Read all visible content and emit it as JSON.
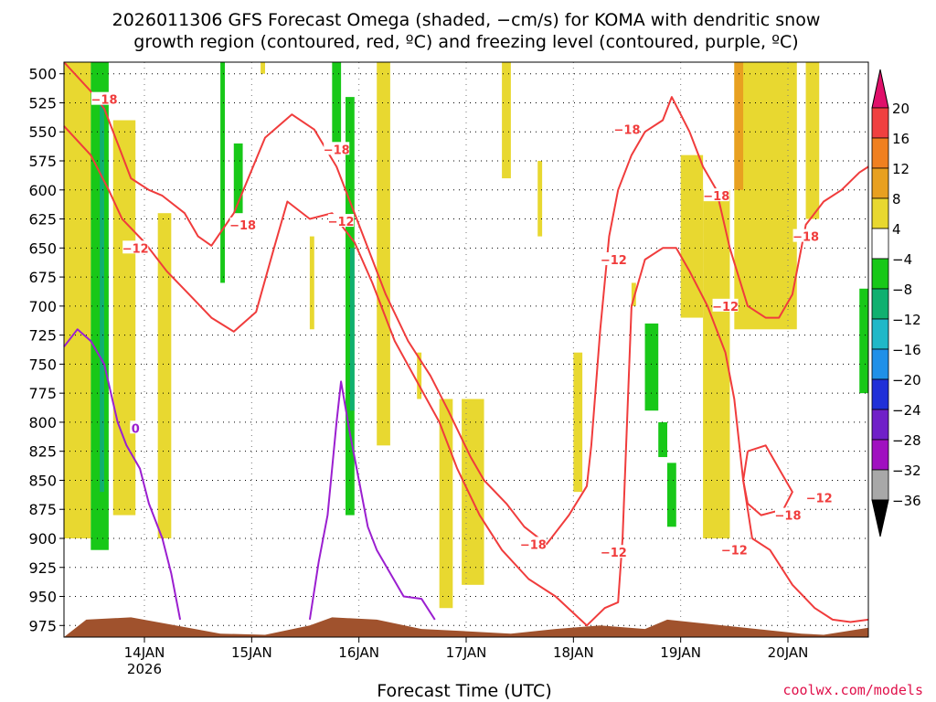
{
  "chart_data": {
    "type": "heatmap",
    "title": {
      "line1": "2026011306 GFS Forecast Omega (shaded, −cm/s) for KOMA with dendritic snow",
      "line2": "growth region (contoured, red, ºC) and freezing level (contoured, purple, ºC)"
    },
    "xlabel": "Forecast Time (UTC)",
    "credit": "coolwx.com/models",
    "x_ticks": [
      {
        "label": "14JAN",
        "sub": "2026",
        "hours": 18
      },
      {
        "label": "15JAN",
        "sub": "",
        "hours": 42
      },
      {
        "label": "16JAN",
        "sub": "",
        "hours": 66
      },
      {
        "label": "17JAN",
        "sub": "",
        "hours": 90
      },
      {
        "label": "18JAN",
        "sub": "",
        "hours": 114
      },
      {
        "label": "19JAN",
        "sub": "",
        "hours": 138
      },
      {
        "label": "20JAN",
        "sub": "",
        "hours": 162
      }
    ],
    "x_range_hours": [
      0,
      180
    ],
    "y_axis": {
      "scale": "pressure (hPa), reversed",
      "ticks": [
        500,
        525,
        550,
        575,
        600,
        625,
        650,
        675,
        700,
        725,
        750,
        775,
        800,
        825,
        850,
        875,
        900,
        925,
        950,
        975
      ],
      "range": [
        490,
        985
      ]
    },
    "grid": "dotted",
    "colorbar": {
      "levels": [
        "20",
        "16",
        "12",
        "8",
        "4",
        "−4",
        "−8",
        "−12",
        "−16",
        "−20",
        "−24",
        "−28",
        "−32",
        "−36"
      ],
      "colors": [
        "#e0106a",
        "#f04040",
        "#f08020",
        "#e8a020",
        "#e8d830",
        "#ffffff",
        "#18c818",
        "#10b070",
        "#20b8c8",
        "#2090e8",
        "#2030d8",
        "#7020c8",
        "#a010c0",
        "#a8a8a8",
        "#000000"
      ]
    },
    "terrain_color": "#a0522d",
    "shading": [
      {
        "color": "#e8d830",
        "x0": 0,
        "x1": 6,
        "p0": 490,
        "p1": 900
      },
      {
        "color": "#18c818",
        "x0": 6,
        "x1": 10,
        "p0": 490,
        "p1": 910
      },
      {
        "color": "#10b070",
        "x0": 8,
        "x1": 9,
        "p0": 520,
        "p1": 860
      },
      {
        "color": "#e8d830",
        "x0": 11,
        "x1": 16,
        "p0": 540,
        "p1": 880
      },
      {
        "color": "#e8d830",
        "x0": 21,
        "x1": 24,
        "p0": 620,
        "p1": 900
      },
      {
        "color": "#18c818",
        "x0": 35,
        "x1": 36,
        "p0": 490,
        "p1": 680
      },
      {
        "color": "#18c818",
        "x0": 38,
        "x1": 40,
        "p0": 560,
        "p1": 620
      },
      {
        "color": "#e8d830",
        "x0": 44,
        "x1": 45,
        "p0": 490,
        "p1": 500
      },
      {
        "color": "#e8d830",
        "x0": 55,
        "x1": 56,
        "p0": 640,
        "p1": 720
      },
      {
        "color": "#18c818",
        "x0": 60,
        "x1": 62,
        "p0": 490,
        "p1": 560
      },
      {
        "color": "#18c818",
        "x0": 63,
        "x1": 65,
        "p0": 520,
        "p1": 880
      },
      {
        "color": "#10b070",
        "x0": 64,
        "x1": 65,
        "p0": 650,
        "p1": 790
      },
      {
        "color": "#e8d830",
        "x0": 70,
        "x1": 73,
        "p0": 490,
        "p1": 820
      },
      {
        "color": "#e8d830",
        "x0": 79,
        "x1": 80,
        "p0": 740,
        "p1": 780
      },
      {
        "color": "#e8d830",
        "x0": 84,
        "x1": 87,
        "p0": 780,
        "p1": 960
      },
      {
        "color": "#e8d830",
        "x0": 89,
        "x1": 94,
        "p0": 780,
        "p1": 940
      },
      {
        "color": "#e8d830",
        "x0": 98,
        "x1": 100,
        "p0": 490,
        "p1": 590
      },
      {
        "color": "#e8d830",
        "x0": 106,
        "x1": 107,
        "p0": 575,
        "p1": 640
      },
      {
        "color": "#e8d830",
        "x0": 114,
        "x1": 116,
        "p0": 740,
        "p1": 860
      },
      {
        "color": "#e8d830",
        "x0": 127,
        "x1": 128,
        "p0": 680,
        "p1": 700
      },
      {
        "color": "#18c818",
        "x0": 130,
        "x1": 133,
        "p0": 715,
        "p1": 790
      },
      {
        "color": "#18c818",
        "x0": 133,
        "x1": 135,
        "p0": 800,
        "p1": 830
      },
      {
        "color": "#18c818",
        "x0": 135,
        "x1": 137,
        "p0": 835,
        "p1": 890
      },
      {
        "color": "#e8d830",
        "x0": 138,
        "x1": 143,
        "p0": 570,
        "p1": 710
      },
      {
        "color": "#e8d830",
        "x0": 143,
        "x1": 149,
        "p0": 600,
        "p1": 900
      },
      {
        "color": "#e8d830",
        "x0": 150,
        "x1": 164,
        "p0": 490,
        "p1": 720
      },
      {
        "color": "#e8a020",
        "x0": 150,
        "x1": 152,
        "p0": 490,
        "p1": 600
      },
      {
        "color": "#e8d830",
        "x0": 166,
        "x1": 169,
        "p0": 490,
        "p1": 625
      },
      {
        "color": "#18c818",
        "x0": 178,
        "x1": 180,
        "p0": 685,
        "p1": 775
      }
    ],
    "series": [
      {
        "label": "−18",
        "kind": "dgz",
        "points": [
          [
            0,
            490
          ],
          [
            6,
            515
          ],
          [
            9,
            530
          ],
          [
            12,
            560
          ],
          [
            15,
            590
          ],
          [
            19,
            600
          ],
          [
            22,
            605
          ],
          [
            27,
            620
          ],
          [
            30,
            640
          ],
          [
            33,
            648
          ],
          [
            38,
            620
          ],
          [
            45,
            555
          ],
          [
            51,
            535
          ],
          [
            56,
            548
          ],
          [
            61,
            580
          ],
          [
            67,
            640
          ],
          [
            72,
            690
          ],
          [
            77,
            730
          ],
          [
            82,
            760
          ],
          [
            86,
            790
          ],
          [
            91,
            830
          ],
          [
            94,
            850
          ],
          [
            99,
            870
          ],
          [
            103,
            890
          ],
          [
            108,
            905
          ],
          [
            113,
            880
          ],
          [
            117,
            855
          ],
          [
            118,
            820
          ],
          [
            120,
            720
          ],
          [
            122,
            640
          ],
          [
            124,
            600
          ],
          [
            127,
            570
          ],
          [
            130,
            550
          ],
          [
            134,
            540
          ],
          [
            136,
            520
          ],
          [
            138,
            535
          ],
          [
            140,
            550
          ],
          [
            143,
            580
          ],
          [
            146,
            600
          ],
          [
            149,
            650
          ],
          [
            153,
            700
          ],
          [
            157,
            710
          ],
          [
            160,
            710
          ],
          [
            163,
            690
          ],
          [
            166,
            630
          ],
          [
            170,
            610
          ],
          [
            174,
            600
          ],
          [
            178,
            585
          ],
          [
            180,
            580
          ]
        ]
      },
      {
        "label": "−12",
        "kind": "dgz",
        "points": [
          [
            0,
            545
          ],
          [
            6,
            570
          ],
          [
            10,
            600
          ],
          [
            13,
            625
          ],
          [
            18,
            645
          ],
          [
            23,
            670
          ],
          [
            28,
            690
          ],
          [
            33,
            710
          ],
          [
            38,
            722
          ],
          [
            43,
            705
          ],
          [
            47,
            650
          ],
          [
            50,
            610
          ],
          [
            55,
            625
          ],
          [
            60,
            620
          ],
          [
            65,
            645
          ],
          [
            69,
            680
          ],
          [
            74,
            730
          ],
          [
            79,
            765
          ],
          [
            84,
            800
          ],
          [
            88,
            840
          ],
          [
            93,
            880
          ],
          [
            98,
            910
          ],
          [
            104,
            935
          ],
          [
            110,
            950
          ],
          [
            117,
            975
          ],
          [
            121,
            960
          ],
          [
            124,
            955
          ],
          [
            125,
            900
          ],
          [
            126,
            800
          ],
          [
            127,
            700
          ],
          [
            130,
            660
          ],
          [
            134,
            650
          ],
          [
            137,
            650
          ],
          [
            140,
            670
          ],
          [
            144,
            700
          ],
          [
            148,
            740
          ],
          [
            150,
            780
          ],
          [
            152,
            850
          ],
          [
            154,
            900
          ],
          [
            158,
            910
          ],
          [
            163,
            940
          ],
          [
            168,
            960
          ],
          [
            172,
            970
          ],
          [
            176,
            972
          ],
          [
            180,
            970
          ]
        ]
      },
      {
        "label": "−18",
        "kind": "dgz",
        "points": [
          [
            153,
            825
          ],
          [
            157,
            820
          ],
          [
            160,
            840
          ],
          [
            163,
            860
          ],
          [
            161,
            875
          ],
          [
            156,
            880
          ],
          [
            153,
            870
          ],
          [
            152,
            850
          ],
          [
            153,
            825
          ]
        ]
      },
      {
        "label": "0",
        "kind": "freezing",
        "points": [
          [
            0,
            735
          ],
          [
            3,
            720
          ],
          [
            6,
            730
          ],
          [
            9,
            750
          ],
          [
            12,
            800
          ],
          [
            14,
            820
          ],
          [
            17,
            840
          ],
          [
            19,
            870
          ],
          [
            22,
            900
          ],
          [
            24,
            930
          ],
          [
            26,
            970
          ]
        ]
      },
      {
        "label": "0",
        "kind": "freezing",
        "points": [
          [
            55,
            970
          ],
          [
            57,
            920
          ],
          [
            59,
            880
          ],
          [
            61,
            800
          ],
          [
            62,
            765
          ],
          [
            64,
            810
          ],
          [
            66,
            850
          ],
          [
            68,
            890
          ],
          [
            70,
            910
          ],
          [
            73,
            930
          ],
          [
            76,
            950
          ],
          [
            80,
            952
          ],
          [
            83,
            970
          ]
        ]
      }
    ],
    "contour_labels": [
      {
        "text": "−18",
        "x": 9,
        "p": 522
      },
      {
        "text": "−12",
        "x": 16,
        "p": 650
      },
      {
        "text": "−18",
        "x": 40,
        "p": 630
      },
      {
        "text": "−18",
        "x": 61,
        "p": 565
      },
      {
        "text": "−12",
        "x": 62,
        "p": 627
      },
      {
        "text": "−18",
        "x": 105,
        "p": 905
      },
      {
        "text": "−12",
        "x": 123,
        "p": 660
      },
      {
        "text": "−12",
        "x": 123,
        "p": 912
      },
      {
        "text": "−18",
        "x": 126,
        "p": 548
      },
      {
        "text": "−18",
        "x": 146,
        "p": 605
      },
      {
        "text": "−12",
        "x": 148,
        "p": 700
      },
      {
        "text": "−12",
        "x": 150,
        "p": 910
      },
      {
        "text": "−18",
        "x": 162,
        "p": 880
      },
      {
        "text": "−18",
        "x": 166,
        "p": 640
      },
      {
        "text": "−12",
        "x": 169,
        "p": 865
      },
      {
        "text": "0",
        "x": 16,
        "p": 805
      }
    ],
    "terrain": [
      [
        0,
        985
      ],
      [
        5,
        970
      ],
      [
        15,
        968
      ],
      [
        25,
        975
      ],
      [
        35,
        982
      ],
      [
        45,
        983
      ],
      [
        55,
        975
      ],
      [
        60,
        968
      ],
      [
        70,
        970
      ],
      [
        80,
        978
      ],
      [
        90,
        980
      ],
      [
        100,
        982
      ],
      [
        110,
        978
      ],
      [
        120,
        975
      ],
      [
        130,
        978
      ],
      [
        135,
        970
      ],
      [
        145,
        974
      ],
      [
        155,
        978
      ],
      [
        165,
        982
      ],
      [
        170,
        983
      ],
      [
        175,
        980
      ],
      [
        180,
        977
      ]
    ]
  }
}
